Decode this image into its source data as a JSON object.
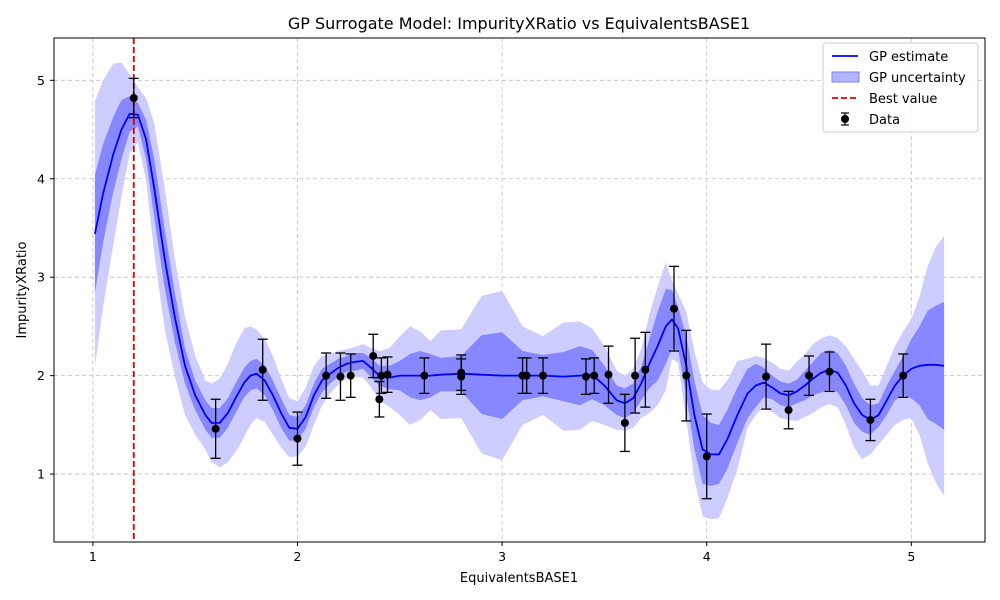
{
  "chart_data": {
    "type": "line",
    "title": "GP Surrogate Model: ImpurityXRatio vs EquivalentsBASE1",
    "xlabel": "EquivalentsBASE1",
    "ylabel": "ImpurityXRatio",
    "xlim": [
      0.81,
      5.36
    ],
    "ylim": [
      0.31,
      5.43
    ],
    "xticks": [
      1,
      2,
      3,
      4,
      5
    ],
    "yticks": [
      1,
      2,
      3,
      4,
      5
    ],
    "grid": true,
    "legend_position": "top-right",
    "best_value_x": 1.2,
    "colors": {
      "gp_line": "#0000ff",
      "band_inner": "#8080ff",
      "band_outer": "#c8c8ff",
      "best_value": "#e00000",
      "data": "#000000",
      "grid": "#c0c0c0"
    },
    "legend": [
      {
        "label": "GP estimate",
        "kind": "line"
      },
      {
        "label": "GP uncertainty",
        "kind": "patch"
      },
      {
        "label": "Best value",
        "kind": "dashed"
      },
      {
        "label": "Data",
        "kind": "errorbar"
      }
    ],
    "gp_curve": {
      "x": [
        1.01,
        1.05,
        1.1,
        1.14,
        1.18,
        1.22,
        1.26,
        1.3,
        1.35,
        1.4,
        1.45,
        1.5,
        1.55,
        1.58,
        1.62,
        1.66,
        1.7,
        1.74,
        1.77,
        1.8,
        1.84,
        1.88,
        1.92,
        1.96,
        2.0,
        2.04,
        2.08,
        2.12,
        2.16,
        2.2,
        2.24,
        2.28,
        2.32,
        2.36,
        2.4,
        2.45,
        2.5,
        2.55,
        2.6,
        2.65,
        2.7,
        2.8,
        2.9,
        3.0,
        3.1,
        3.2,
        3.3,
        3.38,
        3.44,
        3.5,
        3.56,
        3.6,
        3.64,
        3.68,
        3.72,
        3.76,
        3.8,
        3.83,
        3.86,
        3.9,
        3.94,
        3.98,
        4.02,
        4.06,
        4.1,
        4.15,
        4.2,
        4.24,
        4.28,
        4.32,
        4.36,
        4.4,
        4.44,
        4.48,
        4.52,
        4.56,
        4.6,
        4.64,
        4.68,
        4.72,
        4.76,
        4.8,
        4.84,
        4.88,
        4.92,
        4.96,
        5.0,
        5.04,
        5.08,
        5.12,
        5.16
      ],
      "y": [
        3.44,
        3.85,
        4.25,
        4.5,
        4.66,
        4.65,
        4.4,
        3.9,
        3.2,
        2.6,
        2.1,
        1.8,
        1.6,
        1.52,
        1.52,
        1.62,
        1.78,
        1.93,
        2.0,
        2.02,
        1.95,
        1.8,
        1.62,
        1.47,
        1.46,
        1.58,
        1.8,
        1.95,
        2.02,
        2.08,
        2.12,
        2.14,
        2.15,
        2.08,
        2.0,
        1.98,
        2.0,
        2.0,
        2.0,
        2.0,
        2.01,
        2.02,
        2.01,
        2.0,
        2.0,
        2.0,
        1.99,
        2.0,
        2.01,
        1.9,
        1.75,
        1.72,
        1.77,
        1.92,
        2.12,
        2.3,
        2.5,
        2.57,
        2.48,
        2.1,
        1.6,
        1.25,
        1.2,
        1.2,
        1.35,
        1.6,
        1.82,
        1.9,
        1.93,
        1.88,
        1.82,
        1.8,
        1.84,
        1.9,
        1.97,
        2.03,
        2.06,
        2.03,
        1.9,
        1.72,
        1.6,
        1.55,
        1.6,
        1.75,
        1.9,
        2.0,
        2.07,
        2.1,
        2.11,
        2.11,
        2.1
      ],
      "inner": [
        0.6,
        0.5,
        0.38,
        0.3,
        0.18,
        0.12,
        0.2,
        0.3,
        0.3,
        0.25,
        0.18,
        0.15,
        0.15,
        0.15,
        0.15,
        0.15,
        0.15,
        0.15,
        0.15,
        0.15,
        0.15,
        0.15,
        0.15,
        0.13,
        0.12,
        0.12,
        0.12,
        0.12,
        0.1,
        0.09,
        0.08,
        0.09,
        0.08,
        0.1,
        0.1,
        0.12,
        0.15,
        0.22,
        0.25,
        0.22,
        0.17,
        0.18,
        0.4,
        0.44,
        0.25,
        0.21,
        0.25,
        0.3,
        0.25,
        0.2,
        0.15,
        0.15,
        0.15,
        0.17,
        0.25,
        0.35,
        0.38,
        0.3,
        0.22,
        0.3,
        0.35,
        0.35,
        0.32,
        0.3,
        0.3,
        0.28,
        0.25,
        0.22,
        0.15,
        0.12,
        0.12,
        0.12,
        0.12,
        0.15,
        0.17,
        0.2,
        0.2,
        0.2,
        0.2,
        0.2,
        0.17,
        0.15,
        0.12,
        0.15,
        0.15,
        0.2,
        0.3,
        0.4,
        0.55,
        0.6,
        0.65
      ],
      "outer": [
        1.35,
        1.15,
        0.92,
        0.68,
        0.4,
        0.28,
        0.42,
        0.66,
        0.72,
        0.6,
        0.5,
        0.4,
        0.35,
        0.4,
        0.45,
        0.5,
        0.55,
        0.55,
        0.5,
        0.45,
        0.42,
        0.4,
        0.35,
        0.3,
        0.28,
        0.3,
        0.3,
        0.25,
        0.2,
        0.17,
        0.15,
        0.15,
        0.17,
        0.2,
        0.25,
        0.3,
        0.4,
        0.5,
        0.45,
        0.35,
        0.45,
        0.45,
        0.8,
        0.86,
        0.5,
        0.4,
        0.55,
        0.55,
        0.47,
        0.4,
        0.3,
        0.28,
        0.3,
        0.35,
        0.5,
        0.6,
        0.65,
        0.4,
        0.35,
        0.55,
        0.65,
        0.68,
        0.66,
        0.65,
        0.6,
        0.55,
        0.35,
        0.3,
        0.25,
        0.25,
        0.25,
        0.25,
        0.3,
        0.32,
        0.35,
        0.35,
        0.35,
        0.35,
        0.4,
        0.45,
        0.45,
        0.35,
        0.3,
        0.35,
        0.4,
        0.45,
        0.5,
        0.7,
        1.0,
        1.2,
        1.32
      ]
    },
    "observations": [
      {
        "x": 1.2,
        "y": 4.82,
        "err": 0.2
      },
      {
        "x": 1.6,
        "y": 1.46,
        "err": 0.3
      },
      {
        "x": 1.83,
        "y": 2.06,
        "err": 0.31
      },
      {
        "x": 2.0,
        "y": 1.36,
        "err": 0.27
      },
      {
        "x": 2.14,
        "y": 2.0,
        "err": 0.23
      },
      {
        "x": 2.21,
        "y": 1.99,
        "err": 0.24
      },
      {
        "x": 2.26,
        "y": 2.0,
        "err": 0.22
      },
      {
        "x": 2.37,
        "y": 2.2,
        "err": 0.22
      },
      {
        "x": 2.4,
        "y": 1.76,
        "err": 0.18
      },
      {
        "x": 2.41,
        "y": 2.0,
        "err": 0.18
      },
      {
        "x": 2.44,
        "y": 2.01,
        "err": 0.18
      },
      {
        "x": 2.62,
        "y": 2.0,
        "err": 0.18
      },
      {
        "x": 2.8,
        "y": 2.03,
        "err": 0.18
      },
      {
        "x": 2.8,
        "y": 1.99,
        "err": 0.18
      },
      {
        "x": 3.1,
        "y": 2.0,
        "err": 0.18
      },
      {
        "x": 3.12,
        "y": 2.0,
        "err": 0.18
      },
      {
        "x": 3.2,
        "y": 2.0,
        "err": 0.18
      },
      {
        "x": 3.41,
        "y": 1.99,
        "err": 0.18
      },
      {
        "x": 3.45,
        "y": 2.0,
        "err": 0.18
      },
      {
        "x": 3.52,
        "y": 2.01,
        "err": 0.29
      },
      {
        "x": 3.6,
        "y": 1.52,
        "err": 0.29
      },
      {
        "x": 3.65,
        "y": 2.0,
        "err": 0.38
      },
      {
        "x": 3.7,
        "y": 2.06,
        "err": 0.38
      },
      {
        "x": 3.84,
        "y": 2.68,
        "err": 0.43
      },
      {
        "x": 3.9,
        "y": 2.0,
        "err": 0.46
      },
      {
        "x": 4.0,
        "y": 1.18,
        "err": 0.43
      },
      {
        "x": 4.29,
        "y": 1.99,
        "err": 0.33
      },
      {
        "x": 4.4,
        "y": 1.65,
        "err": 0.19
      },
      {
        "x": 4.5,
        "y": 2.0,
        "err": 0.2
      },
      {
        "x": 4.6,
        "y": 2.04,
        "err": 0.2
      },
      {
        "x": 4.8,
        "y": 1.55,
        "err": 0.21
      },
      {
        "x": 4.96,
        "y": 2.0,
        "err": 0.22
      }
    ]
  }
}
